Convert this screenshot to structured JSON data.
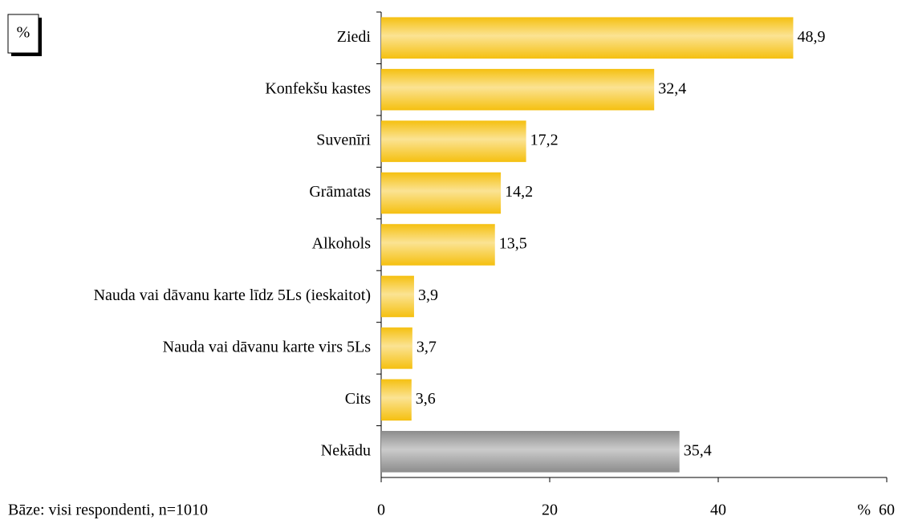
{
  "chart_data": {
    "type": "hbar",
    "unit_box": "%",
    "x_label": "%",
    "footnote": "Bāze: visi respondenti, n=1010",
    "categories": [
      "Ziedi",
      "Konfekšu kastes",
      "Suvenīri",
      "Grāmatas",
      "Alkohols",
      "Nauda vai dāvanu karte līdz 5Ls (ieskaitot)",
      "Nauda vai dāvanu karte virs 5Ls",
      "Cits",
      "Nekādu"
    ],
    "values": [
      48.9,
      32.4,
      17.2,
      14.2,
      13.5,
      3.9,
      3.7,
      3.6,
      35.4
    ],
    "value_labels": [
      "48,9",
      "32,4",
      "17,2",
      "14,2",
      "13,5",
      "3,9",
      "3,7",
      "3,6",
      "35,4"
    ],
    "colors": [
      "#f5c010",
      "#f5c010",
      "#f5c010",
      "#f5c010",
      "#f5c010",
      "#f5c010",
      "#f5c010",
      "#f5c010",
      "#8c8c8c"
    ],
    "xlim": [
      0,
      60
    ],
    "xticks": [
      0,
      20,
      40,
      60
    ],
    "grid": false
  }
}
